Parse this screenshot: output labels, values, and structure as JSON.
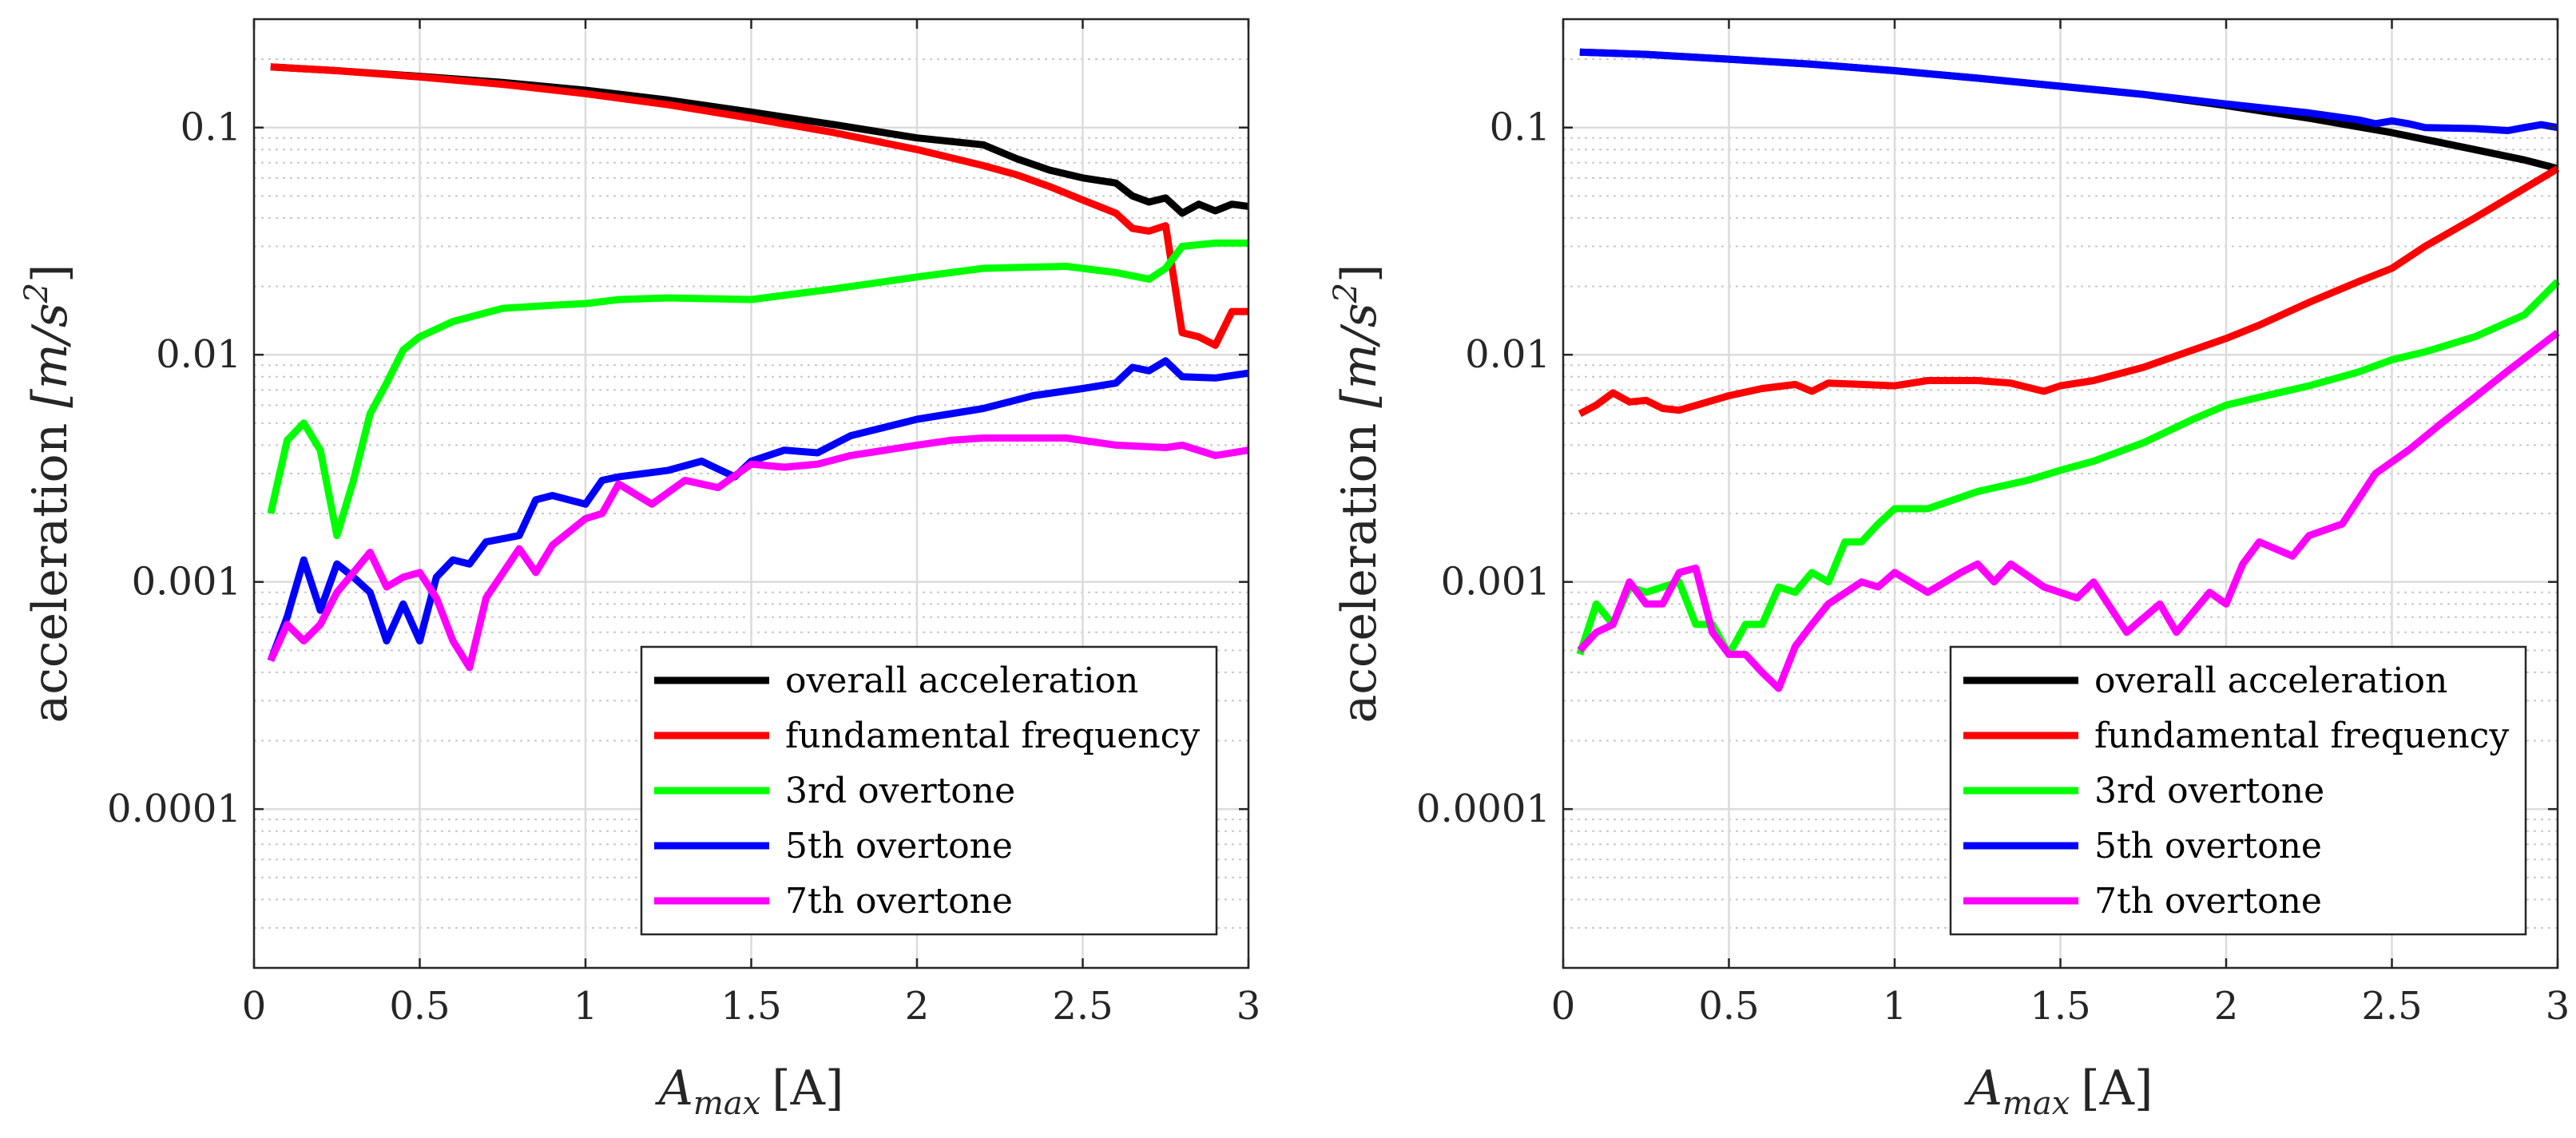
{
  "chart_data": [
    {
      "type": "line",
      "xlabel_main": "A",
      "xlabel_sub": "max",
      "xlabel_unit": "[A]",
      "ylabel_text": "acceleration ",
      "ylabel_unit": "[m/s",
      "ylabel_exp": "2",
      "ylabel_close": "]",
      "ylog": true,
      "xlim": [
        0,
        3
      ],
      "ylim": [
        2e-05,
        0.3
      ],
      "xticks": [
        0,
        0.5,
        1,
        1.5,
        2,
        2.5,
        3
      ],
      "xtick_labels": [
        "0",
        "0.5",
        "1",
        "1.5",
        "2",
        "2.5",
        "3"
      ],
      "yticks": [
        0.0001,
        0.001,
        0.01,
        0.1
      ],
      "ytick_labels": [
        "0.0001",
        "0.001",
        "0.01",
        "0.1"
      ],
      "grid": true,
      "legend_position": "bottom-right",
      "series": [
        {
          "name": "overall acceleration",
          "color": "#000000",
          "x": [
            0.05,
            0.25,
            0.5,
            0.75,
            1.0,
            1.25,
            1.5,
            1.75,
            2.0,
            2.2,
            2.3,
            2.4,
            2.5,
            2.6,
            2.65,
            2.7,
            2.75,
            2.8,
            2.85,
            2.9,
            2.95,
            3.0
          ],
          "y": [
            0.185,
            0.178,
            0.168,
            0.158,
            0.146,
            0.132,
            0.117,
            0.103,
            0.09,
            0.084,
            0.073,
            0.065,
            0.06,
            0.057,
            0.05,
            0.047,
            0.049,
            0.042,
            0.046,
            0.043,
            0.046,
            0.045
          ]
        },
        {
          "name": "fundamental frequency",
          "color": "#ff0000",
          "x": [
            0.05,
            0.25,
            0.5,
            0.75,
            1.0,
            1.25,
            1.5,
            1.75,
            2.0,
            2.2,
            2.3,
            2.4,
            2.5,
            2.6,
            2.65,
            2.7,
            2.75,
            2.8,
            2.85,
            2.9,
            2.95,
            3.0
          ],
          "y": [
            0.185,
            0.178,
            0.167,
            0.155,
            0.141,
            0.126,
            0.11,
            0.095,
            0.08,
            0.068,
            0.062,
            0.055,
            0.048,
            0.042,
            0.036,
            0.035,
            0.037,
            0.0125,
            0.012,
            0.011,
            0.0155,
            0.0155
          ]
        },
        {
          "name": "3rd overtone",
          "color": "#00ff00",
          "x": [
            0.05,
            0.1,
            0.15,
            0.2,
            0.25,
            0.3,
            0.35,
            0.4,
            0.45,
            0.5,
            0.6,
            0.75,
            0.9,
            1.0,
            1.1,
            1.25,
            1.5,
            1.75,
            2.0,
            2.2,
            2.45,
            2.6,
            2.7,
            2.75,
            2.8,
            2.9,
            3.0
          ],
          "y": [
            0.002,
            0.0042,
            0.005,
            0.0038,
            0.0016,
            0.0028,
            0.0055,
            0.0075,
            0.0105,
            0.012,
            0.014,
            0.016,
            0.0165,
            0.0168,
            0.0175,
            0.0178,
            0.0175,
            0.0195,
            0.022,
            0.024,
            0.0245,
            0.023,
            0.0215,
            0.024,
            0.03,
            0.031,
            0.031
          ]
        },
        {
          "name": "5th overtone",
          "color": "#0000ff",
          "x": [
            0.05,
            0.1,
            0.15,
            0.2,
            0.25,
            0.3,
            0.35,
            0.4,
            0.45,
            0.5,
            0.55,
            0.6,
            0.65,
            0.7,
            0.8,
            0.85,
            0.9,
            1.0,
            1.05,
            1.1,
            1.25,
            1.35,
            1.45,
            1.5,
            1.6,
            1.7,
            1.8,
            2.0,
            2.2,
            2.35,
            2.5,
            2.6,
            2.65,
            2.7,
            2.75,
            2.8,
            2.9,
            3.0
          ],
          "y": [
            0.00045,
            0.0007,
            0.00125,
            0.00075,
            0.0012,
            0.00105,
            0.0009,
            0.00055,
            0.0008,
            0.00055,
            0.00105,
            0.00125,
            0.0012,
            0.0015,
            0.0016,
            0.0023,
            0.0024,
            0.0022,
            0.0028,
            0.0029,
            0.0031,
            0.0034,
            0.0029,
            0.0034,
            0.0038,
            0.0037,
            0.0044,
            0.0052,
            0.0058,
            0.0066,
            0.0071,
            0.0075,
            0.0088,
            0.0085,
            0.0094,
            0.008,
            0.0079,
            0.0083
          ]
        },
        {
          "name": "7th overtone",
          "color": "#ff00ff",
          "x": [
            0.05,
            0.1,
            0.15,
            0.2,
            0.25,
            0.3,
            0.35,
            0.4,
            0.45,
            0.5,
            0.55,
            0.6,
            0.65,
            0.7,
            0.8,
            0.85,
            0.9,
            1.0,
            1.05,
            1.1,
            1.2,
            1.3,
            1.4,
            1.5,
            1.6,
            1.7,
            1.8,
            2.0,
            2.1,
            2.2,
            2.3,
            2.45,
            2.6,
            2.75,
            2.8,
            2.9,
            3.0
          ],
          "y": [
            0.00045,
            0.00065,
            0.00055,
            0.00065,
            0.0009,
            0.0011,
            0.00135,
            0.00095,
            0.00105,
            0.0011,
            0.00085,
            0.00055,
            0.00042,
            0.00085,
            0.0014,
            0.0011,
            0.00145,
            0.0019,
            0.002,
            0.0027,
            0.0022,
            0.0028,
            0.0026,
            0.0033,
            0.0032,
            0.0033,
            0.0036,
            0.004,
            0.0042,
            0.0043,
            0.0043,
            0.0043,
            0.004,
            0.0039,
            0.004,
            0.0036,
            0.0038
          ]
        }
      ]
    },
    {
      "type": "line",
      "xlabel_main": "A",
      "xlabel_sub": "max",
      "xlabel_unit": "[A]",
      "ylabel_text": "acceleration ",
      "ylabel_unit": "[m/s",
      "ylabel_exp": "2",
      "ylabel_close": "]",
      "ylog": true,
      "xlim": [
        0,
        3
      ],
      "ylim": [
        2e-05,
        0.3
      ],
      "xticks": [
        0,
        0.5,
        1,
        1.5,
        2,
        2.5,
        3
      ],
      "xtick_labels": [
        "0",
        "0.5",
        "1",
        "1.5",
        "2",
        "2.5",
        "3"
      ],
      "yticks": [
        0.0001,
        0.001,
        0.01,
        0.1
      ],
      "ytick_labels": [
        "0.0001",
        "0.001",
        "0.01",
        "0.1"
      ],
      "grid": true,
      "legend_position": "bottom-right",
      "series": [
        {
          "name": "overall acceleration",
          "color": "#000000",
          "x": [
            0.05,
            0.25,
            0.5,
            0.75,
            1.0,
            1.25,
            1.5,
            1.75,
            2.0,
            2.25,
            2.5,
            2.75,
            2.9,
            3.0
          ],
          "y": [
            0.215,
            0.21,
            0.2,
            0.19,
            0.178,
            0.165,
            0.152,
            0.14,
            0.125,
            0.11,
            0.095,
            0.08,
            0.072,
            0.066
          ]
        },
        {
          "name": "fundamental frequency",
          "color": "#ff0000",
          "x": [
            0.05,
            0.1,
            0.15,
            0.2,
            0.25,
            0.3,
            0.35,
            0.5,
            0.6,
            0.7,
            0.75,
            0.8,
            0.9,
            1.0,
            1.1,
            1.25,
            1.35,
            1.45,
            1.5,
            1.6,
            1.75,
            1.9,
            2.0,
            2.1,
            2.25,
            2.4,
            2.5,
            2.6,
            2.75,
            2.9,
            3.0
          ],
          "y": [
            0.0055,
            0.006,
            0.0068,
            0.0062,
            0.0063,
            0.0058,
            0.0057,
            0.0066,
            0.0071,
            0.0074,
            0.0069,
            0.0075,
            0.0074,
            0.0073,
            0.0077,
            0.0077,
            0.0075,
            0.0069,
            0.0073,
            0.0077,
            0.0088,
            0.0105,
            0.0118,
            0.0135,
            0.017,
            0.021,
            0.024,
            0.03,
            0.04,
            0.054,
            0.066
          ]
        },
        {
          "name": "3rd overtone",
          "color": "#00ff00",
          "x": [
            0.05,
            0.1,
            0.15,
            0.2,
            0.25,
            0.3,
            0.35,
            0.4,
            0.45,
            0.5,
            0.55,
            0.6,
            0.65,
            0.7,
            0.75,
            0.8,
            0.85,
            0.9,
            0.95,
            1.0,
            1.1,
            1.25,
            1.4,
            1.5,
            1.6,
            1.75,
            1.9,
            2.0,
            2.1,
            2.25,
            2.4,
            2.5,
            2.6,
            2.75,
            2.9,
            3.0
          ],
          "y": [
            0.00048,
            0.0008,
            0.00065,
            0.00095,
            0.0009,
            0.00095,
            0.001,
            0.00065,
            0.00065,
            0.00048,
            0.00065,
            0.00065,
            0.00095,
            0.0009,
            0.0011,
            0.001,
            0.0015,
            0.0015,
            0.0018,
            0.0021,
            0.0021,
            0.0025,
            0.0028,
            0.0031,
            0.0034,
            0.0041,
            0.0052,
            0.006,
            0.0065,
            0.0073,
            0.0084,
            0.0095,
            0.0103,
            0.012,
            0.015,
            0.021
          ]
        },
        {
          "name": "5th overtone",
          "color": "#0000ff",
          "x": [
            0.05,
            0.25,
            0.5,
            0.75,
            1.0,
            1.25,
            1.5,
            1.75,
            2.0,
            2.25,
            2.4,
            2.45,
            2.5,
            2.55,
            2.6,
            2.75,
            2.85,
            2.9,
            2.95,
            3.0
          ],
          "y": [
            0.215,
            0.21,
            0.2,
            0.19,
            0.178,
            0.165,
            0.152,
            0.14,
            0.127,
            0.116,
            0.108,
            0.104,
            0.107,
            0.104,
            0.1,
            0.099,
            0.097,
            0.1,
            0.103,
            0.1
          ]
        },
        {
          "name": "7th overtone",
          "color": "#ff00ff",
          "x": [
            0.05,
            0.1,
            0.15,
            0.2,
            0.25,
            0.3,
            0.35,
            0.4,
            0.45,
            0.5,
            0.55,
            0.6,
            0.65,
            0.7,
            0.75,
            0.8,
            0.9,
            0.95,
            1.0,
            1.1,
            1.2,
            1.25,
            1.3,
            1.35,
            1.45,
            1.55,
            1.6,
            1.7,
            1.8,
            1.85,
            1.95,
            2.0,
            2.05,
            2.1,
            2.2,
            2.25,
            2.35,
            2.45,
            2.55,
            2.65,
            2.75,
            2.85,
            3.0
          ],
          "y": [
            0.0005,
            0.0006,
            0.00065,
            0.001,
            0.0008,
            0.0008,
            0.0011,
            0.00115,
            0.0006,
            0.00048,
            0.00048,
            0.0004,
            0.00034,
            0.00052,
            0.00065,
            0.0008,
            0.001,
            0.00095,
            0.0011,
            0.0009,
            0.0011,
            0.0012,
            0.001,
            0.0012,
            0.00095,
            0.00085,
            0.001,
            0.0006,
            0.0008,
            0.0006,
            0.0009,
            0.0008,
            0.0012,
            0.0015,
            0.0013,
            0.0016,
            0.0018,
            0.003,
            0.0038,
            0.005,
            0.0065,
            0.0085,
            0.0125
          ]
        }
      ]
    }
  ]
}
